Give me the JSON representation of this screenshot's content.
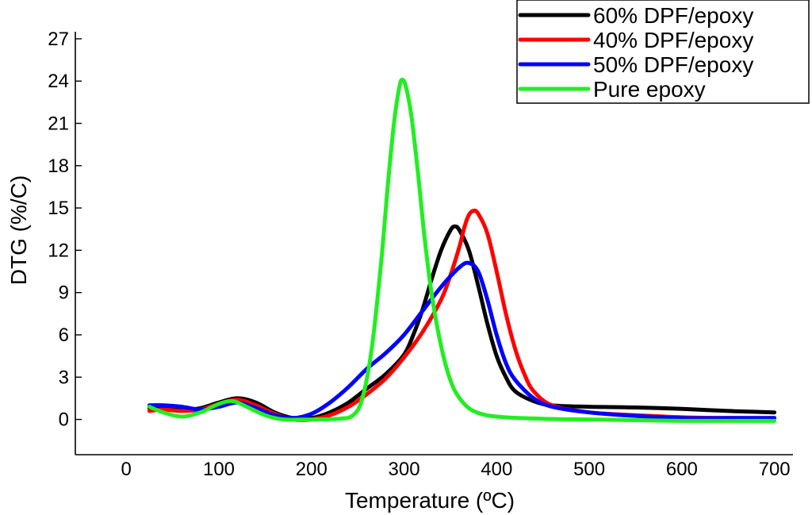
{
  "chart_data": {
    "type": "line",
    "title": "",
    "xlabel": "Temperature (ºC)",
    "ylabel": "DTG (%/C)",
    "xlim": [
      -55,
      720
    ],
    "ylim": [
      -2.5,
      27.5
    ],
    "xticks": [
      0,
      100,
      200,
      300,
      400,
      500,
      600,
      700
    ],
    "yticks": [
      0,
      3,
      6,
      9,
      12,
      15,
      18,
      21,
      24,
      27
    ],
    "legend_position": "top-right",
    "grid": false,
    "series": [
      {
        "name": "60% DPF/epoxy",
        "color": "#000000",
        "points": [
          [
            25,
            0.8
          ],
          [
            40,
            0.8
          ],
          [
            60,
            0.7
          ],
          [
            80,
            0.8
          ],
          [
            100,
            1.2
          ],
          [
            120,
            1.5
          ],
          [
            140,
            1.2
          ],
          [
            160,
            0.5
          ],
          [
            180,
            0.1
          ],
          [
            200,
            0.1
          ],
          [
            220,
            0.5
          ],
          [
            240,
            1.2
          ],
          [
            260,
            2.2
          ],
          [
            280,
            3.2
          ],
          [
            300,
            4.6
          ],
          [
            310,
            6.0
          ],
          [
            320,
            7.8
          ],
          [
            330,
            10.0
          ],
          [
            340,
            12.0
          ],
          [
            350,
            13.4
          ],
          [
            355,
            13.7
          ],
          [
            360,
            13.4
          ],
          [
            370,
            12.0
          ],
          [
            380,
            9.5
          ],
          [
            390,
            6.8
          ],
          [
            400,
            4.5
          ],
          [
            410,
            3.0
          ],
          [
            420,
            2.0
          ],
          [
            440,
            1.3
          ],
          [
            460,
            1.0
          ],
          [
            500,
            0.9
          ],
          [
            550,
            0.85
          ],
          [
            600,
            0.75
          ],
          [
            650,
            0.6
          ],
          [
            700,
            0.5
          ]
        ]
      },
      {
        "name": "40% DPF/epoxy",
        "color": "#ff0000",
        "points": [
          [
            25,
            0.6
          ],
          [
            40,
            0.7
          ],
          [
            60,
            0.6
          ],
          [
            80,
            0.7
          ],
          [
            100,
            1.1
          ],
          [
            120,
            1.4
          ],
          [
            140,
            1.0
          ],
          [
            160,
            0.4
          ],
          [
            180,
            0.0
          ],
          [
            200,
            0.0
          ],
          [
            220,
            0.3
          ],
          [
            240,
            0.9
          ],
          [
            260,
            1.8
          ],
          [
            280,
            2.9
          ],
          [
            300,
            4.4
          ],
          [
            320,
            6.2
          ],
          [
            340,
            8.5
          ],
          [
            350,
            10.2
          ],
          [
            360,
            12.3
          ],
          [
            365,
            13.6
          ],
          [
            370,
            14.5
          ],
          [
            375,
            14.8
          ],
          [
            380,
            14.6
          ],
          [
            390,
            13.2
          ],
          [
            400,
            10.5
          ],
          [
            410,
            7.5
          ],
          [
            420,
            5.0
          ],
          [
            430,
            3.2
          ],
          [
            440,
            2.0
          ],
          [
            460,
            1.0
          ],
          [
            500,
            0.5
          ],
          [
            550,
            0.3
          ],
          [
            600,
            0.15
          ],
          [
            650,
            0.1
          ],
          [
            700,
            0.1
          ]
        ]
      },
      {
        "name": "50% DPF/epoxy",
        "color": "#0000ff",
        "points": [
          [
            25,
            1.0
          ],
          [
            40,
            1.0
          ],
          [
            60,
            0.9
          ],
          [
            80,
            0.7
          ],
          [
            100,
            0.9
          ],
          [
            120,
            1.2
          ],
          [
            140,
            0.8
          ],
          [
            160,
            0.3
          ],
          [
            180,
            0.1
          ],
          [
            200,
            0.4
          ],
          [
            220,
            1.2
          ],
          [
            240,
            2.3
          ],
          [
            260,
            3.6
          ],
          [
            280,
            4.7
          ],
          [
            300,
            6.0
          ],
          [
            320,
            7.7
          ],
          [
            340,
            9.4
          ],
          [
            360,
            10.8
          ],
          [
            370,
            11.1
          ],
          [
            380,
            10.5
          ],
          [
            390,
            8.5
          ],
          [
            400,
            6.0
          ],
          [
            410,
            4.0
          ],
          [
            420,
            2.8
          ],
          [
            440,
            1.5
          ],
          [
            460,
            0.9
          ],
          [
            500,
            0.5
          ],
          [
            550,
            0.25
          ],
          [
            600,
            0.1
          ],
          [
            650,
            0.1
          ],
          [
            700,
            0.1
          ]
        ]
      },
      {
        "name": "Pure epoxy",
        "color": "#22ee22",
        "points": [
          [
            25,
            0.9
          ],
          [
            40,
            0.5
          ],
          [
            60,
            0.2
          ],
          [
            80,
            0.5
          ],
          [
            100,
            1.1
          ],
          [
            115,
            1.3
          ],
          [
            130,
            0.9
          ],
          [
            150,
            0.3
          ],
          [
            170,
            0.0
          ],
          [
            200,
            0.0
          ],
          [
            230,
            0.05
          ],
          [
            245,
            0.3
          ],
          [
            255,
            1.5
          ],
          [
            265,
            5.0
          ],
          [
            275,
            11.0
          ],
          [
            283,
            17.0
          ],
          [
            290,
            21.5
          ],
          [
            295,
            23.6
          ],
          [
            298,
            24.1
          ],
          [
            302,
            23.6
          ],
          [
            308,
            21.5
          ],
          [
            315,
            17.5
          ],
          [
            322,
            13.0
          ],
          [
            330,
            8.8
          ],
          [
            340,
            5.2
          ],
          [
            350,
            2.8
          ],
          [
            360,
            1.5
          ],
          [
            375,
            0.6
          ],
          [
            400,
            0.2
          ],
          [
            450,
            0.05
          ],
          [
            500,
            0.0
          ],
          [
            550,
            -0.05
          ],
          [
            600,
            -0.1
          ],
          [
            650,
            -0.1
          ],
          [
            700,
            -0.1
          ]
        ]
      }
    ]
  }
}
